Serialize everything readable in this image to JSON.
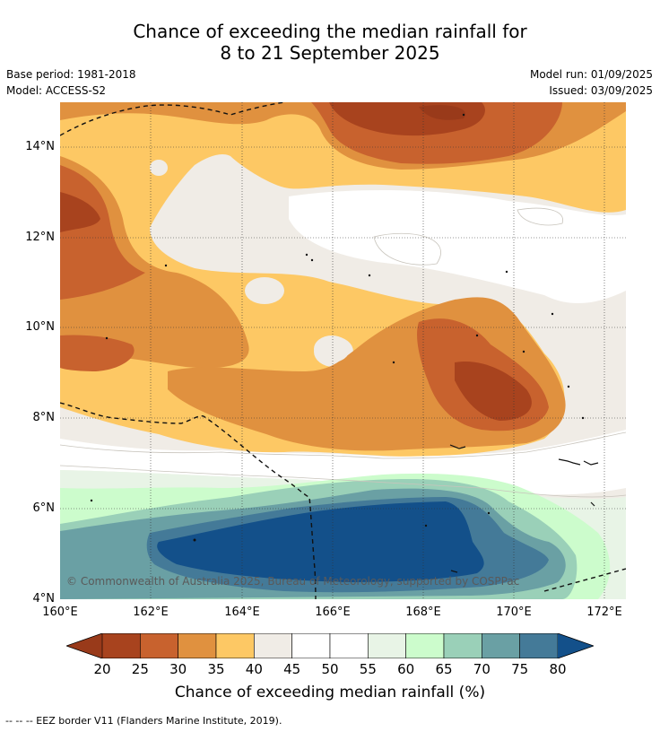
{
  "title_line1": "Chance of exceeding the median rainfall for",
  "title_line2": "8 to 21 September 2025",
  "base_period": "Base period: 1981-2018",
  "model": "Model: ACCESS-S2",
  "model_run": "Model run: 01/09/2025",
  "issued": "Issued: 03/09/2025",
  "lat_labels": [
    "14°N",
    "12°N",
    "10°N",
    "8°N",
    "6°N",
    "4°N"
  ],
  "lon_labels": [
    "160°E",
    "162°E",
    "164°E",
    "166°E",
    "168°E",
    "170°E",
    "172°E"
  ],
  "copyright": "© Commonwealth of Australia 2025, Bureau of Meteorology, supported by COSPPac",
  "colorbar": {
    "ticks": [
      "20",
      "25",
      "30",
      "35",
      "40",
      "45",
      "50",
      "55",
      "60",
      "65",
      "70",
      "75",
      "80"
    ],
    "colors": [
      "#a8431e",
      "#c8622e",
      "#e0913f",
      "#fdc864",
      "#f0ece6",
      "#ffffff",
      "#ffffff",
      "#e8f4e6",
      "#ccfccc",
      "#9ad0b8",
      "#6aa0a4",
      "#447a98"
    ],
    "under_color": "#993a1a",
    "over_color": "#13508a",
    "label": "Chance of exceeding median rainfall (%)"
  },
  "legend": "--  --  -- EEZ border V11 (Flanders Marine Institute, 2019)."
}
